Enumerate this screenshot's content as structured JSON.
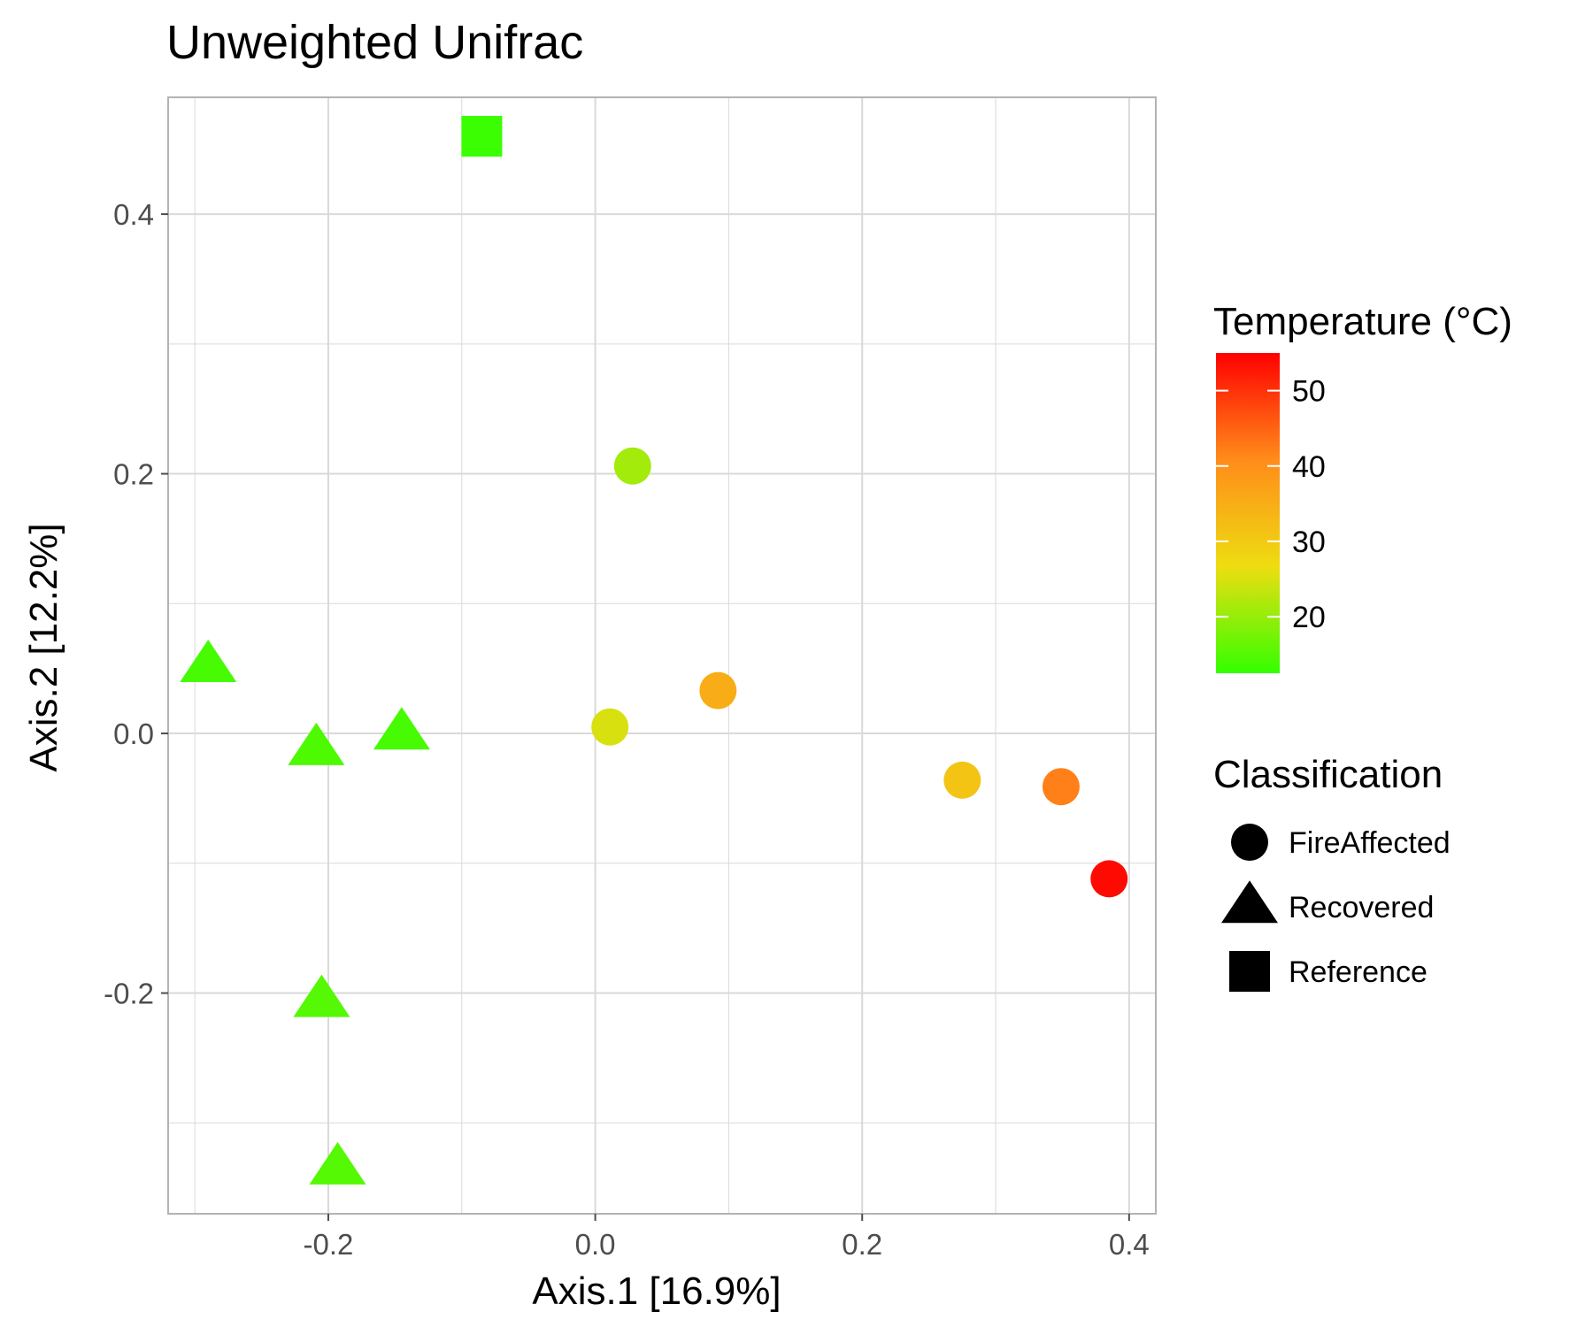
{
  "chart_data": {
    "type": "scatter",
    "title": "Unweighted Unifrac",
    "xlabel": "Axis.1   [16.9%]",
    "ylabel": "Axis.2   [12.2%]",
    "xlim": [
      -0.32,
      0.42
    ],
    "ylim": [
      -0.37,
      0.49
    ],
    "x_ticks": [
      -0.2,
      0.0,
      0.2,
      0.4
    ],
    "x_tick_labels": [
      "-0.2",
      "0.0",
      "0.2",
      "0.4"
    ],
    "y_ticks": [
      -0.2,
      0.0,
      0.2,
      0.4
    ],
    "y_tick_labels": [
      "-0.2",
      "0.0",
      "0.2",
      "0.4"
    ],
    "grid": true,
    "color_legend": {
      "title": "Temperature (°C)",
      "min": 12.5,
      "max": 55,
      "ticks": [
        20,
        30,
        40,
        50
      ],
      "tick_labels": [
        "20",
        "30",
        "40",
        "50"
      ],
      "colors": [
        "#33ff00",
        "#eedd11",
        "#ff8c1a",
        "#ff0000"
      ]
    },
    "shape_legend": {
      "title": "Classification",
      "entries": [
        {
          "label": "FireAffected",
          "shape": "circle"
        },
        {
          "label": "Recovered",
          "shape": "triangle"
        },
        {
          "label": "Reference",
          "shape": "square"
        }
      ]
    },
    "points": [
      {
        "x": -0.085,
        "y": 0.46,
        "temperature": 13,
        "classification": "Reference"
      },
      {
        "x": 0.028,
        "y": 0.206,
        "temperature": 21,
        "classification": "FireAffected"
      },
      {
        "x": 0.092,
        "y": 0.033,
        "temperature": 35,
        "classification": "FireAffected"
      },
      {
        "x": 0.011,
        "y": 0.005,
        "temperature": 25,
        "classification": "FireAffected"
      },
      {
        "x": 0.275,
        "y": -0.036,
        "temperature": 31,
        "classification": "FireAffected"
      },
      {
        "x": 0.349,
        "y": -0.041,
        "temperature": 42,
        "classification": "FireAffected"
      },
      {
        "x": 0.385,
        "y": -0.112,
        "temperature": 54,
        "classification": "FireAffected"
      },
      {
        "x": -0.29,
        "y": 0.052,
        "temperature": 14,
        "classification": "Recovered"
      },
      {
        "x": -0.145,
        "y": 0.0,
        "temperature": 14,
        "classification": "Recovered"
      },
      {
        "x": -0.209,
        "y": -0.012,
        "temperature": 14.5,
        "classification": "Recovered"
      },
      {
        "x": -0.205,
        "y": -0.206,
        "temperature": 15,
        "classification": "Recovered"
      },
      {
        "x": -0.193,
        "y": -0.335,
        "temperature": 15,
        "classification": "Recovered"
      }
    ]
  }
}
